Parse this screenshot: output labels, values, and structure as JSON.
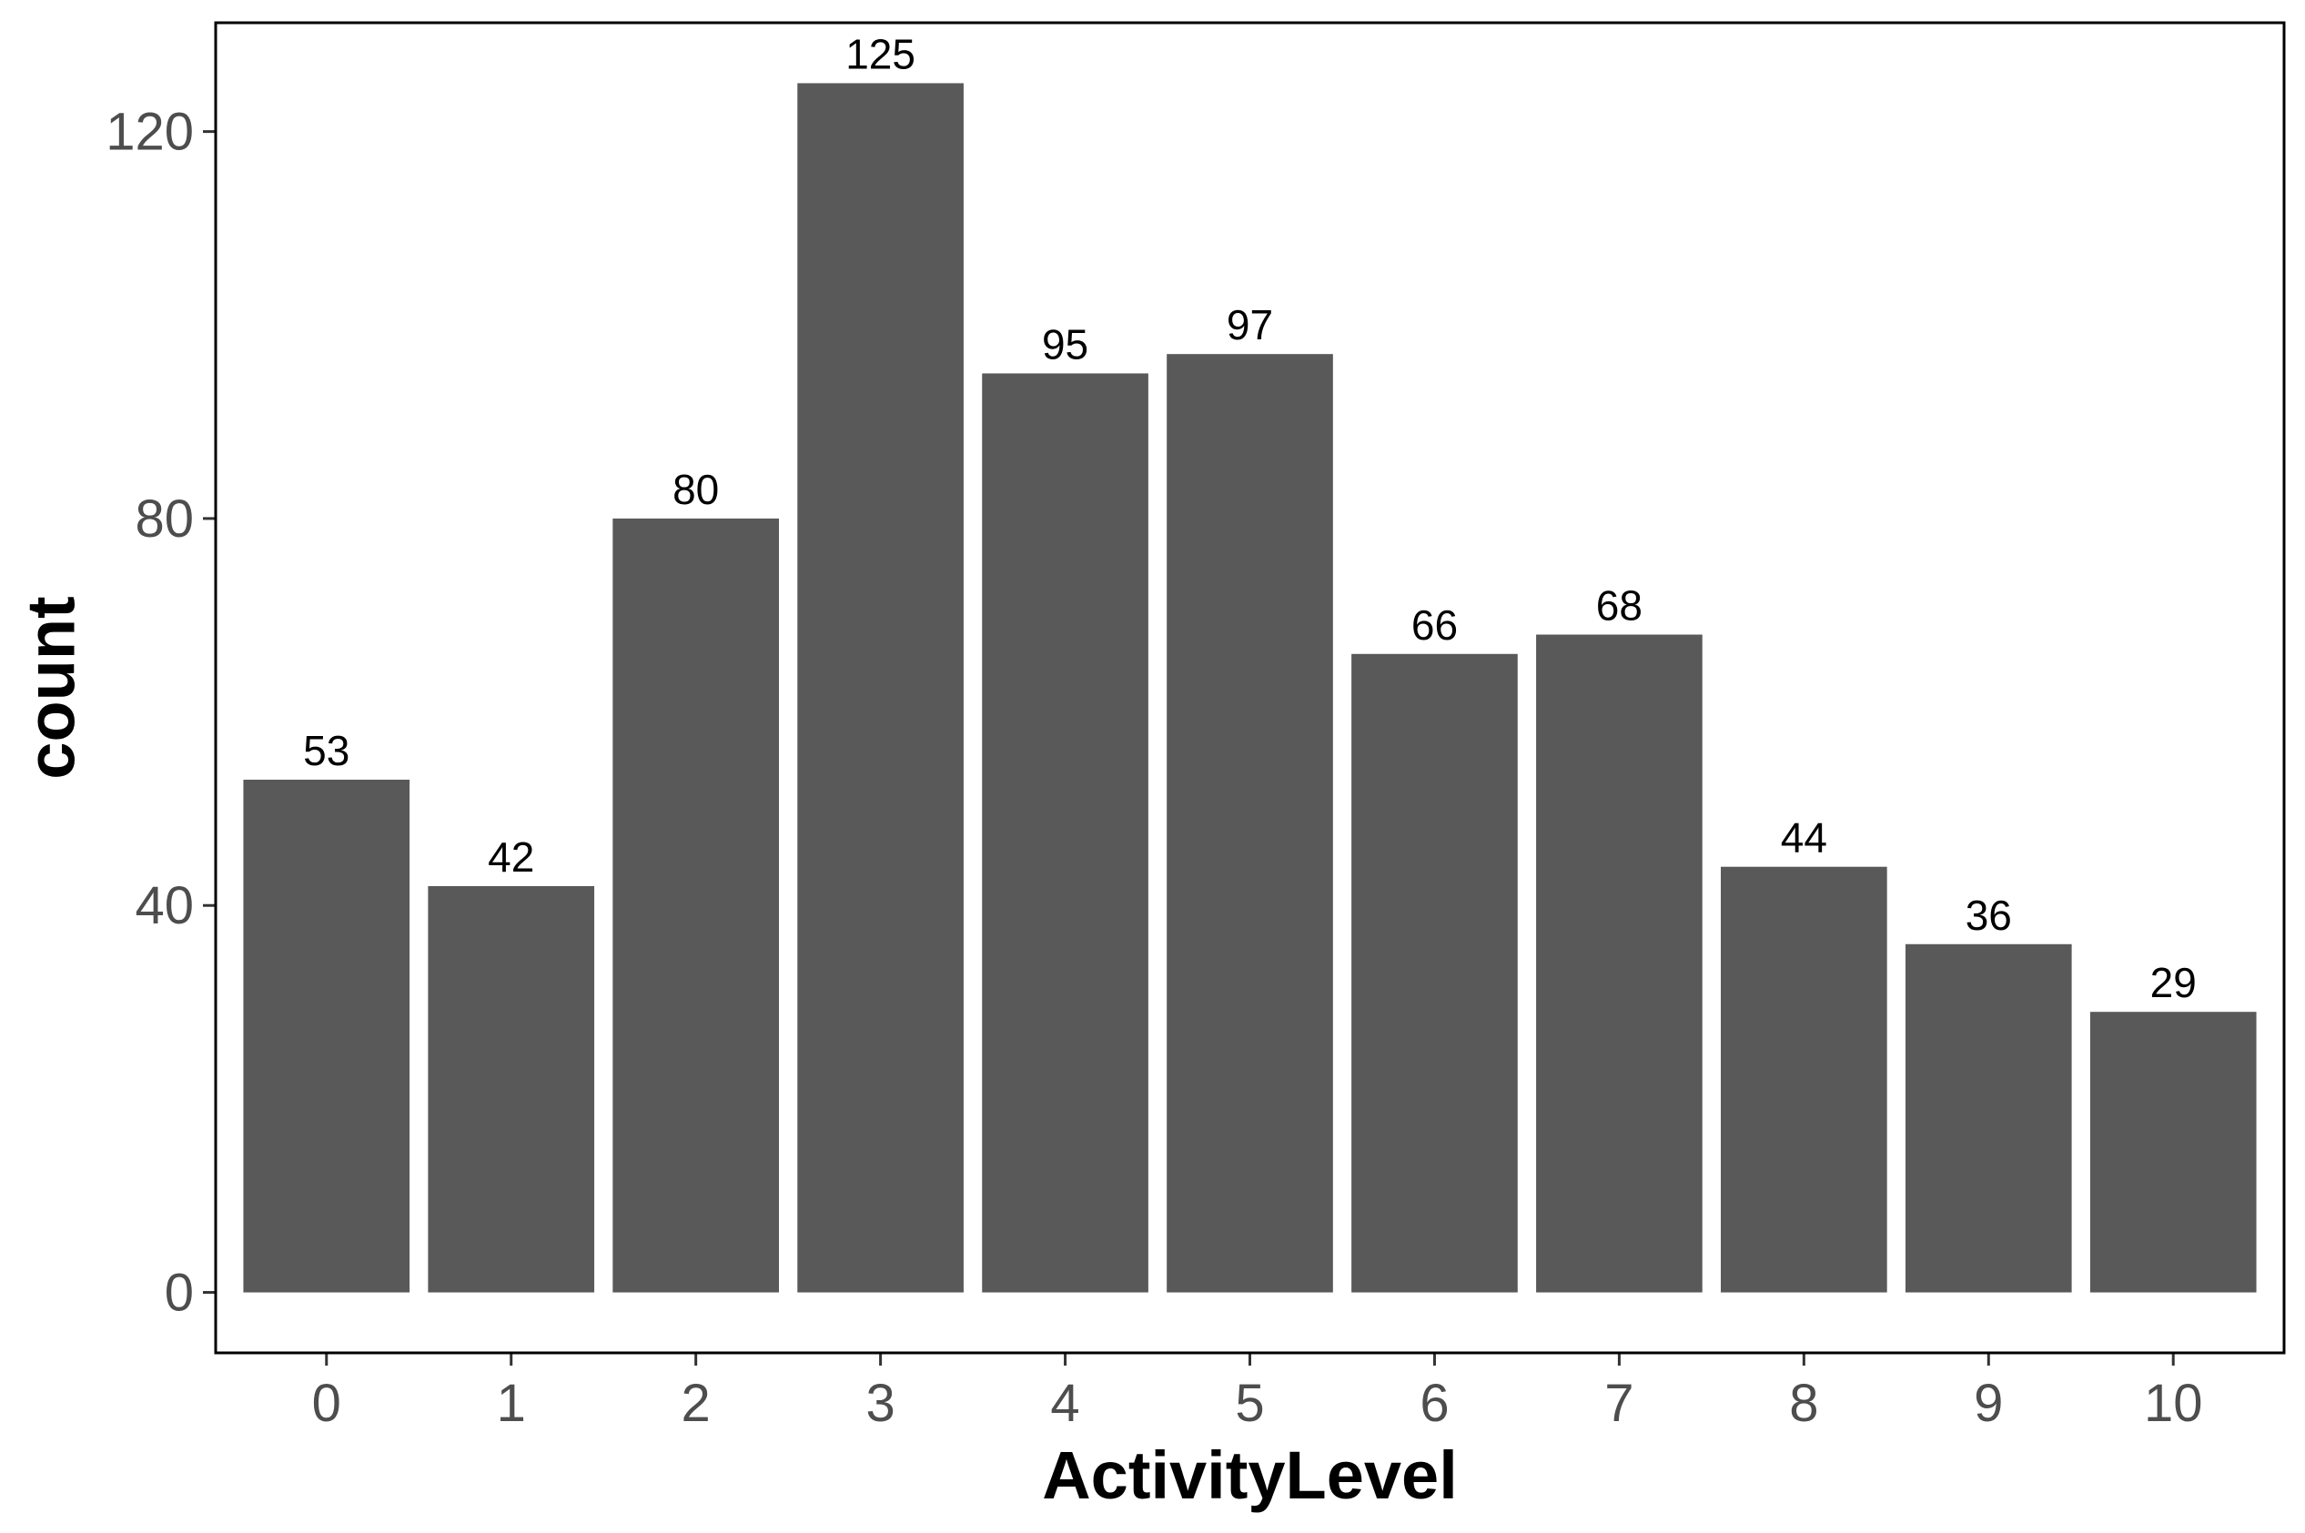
{
  "chart_data": {
    "type": "bar",
    "categories": [
      "0",
      "1",
      "2",
      "3",
      "4",
      "5",
      "6",
      "7",
      "8",
      "9",
      "10"
    ],
    "values": [
      53,
      42,
      80,
      125,
      95,
      97,
      66,
      68,
      44,
      36,
      29
    ],
    "data_labels": [
      "53",
      "42",
      "80",
      "125",
      "95",
      "97",
      "66",
      "68",
      "44",
      "36",
      "29"
    ],
    "title": "",
    "xlabel": "ActivityLevel",
    "ylabel": "count",
    "ylim": [
      -6.25,
      131.25
    ],
    "yticks": [
      0,
      40,
      80,
      120
    ],
    "ytick_labels": [
      "0",
      "40",
      "80",
      "120"
    ],
    "grid": false,
    "legend": "none",
    "bar_color": "#595959",
    "panel_border_color": "#000000"
  }
}
